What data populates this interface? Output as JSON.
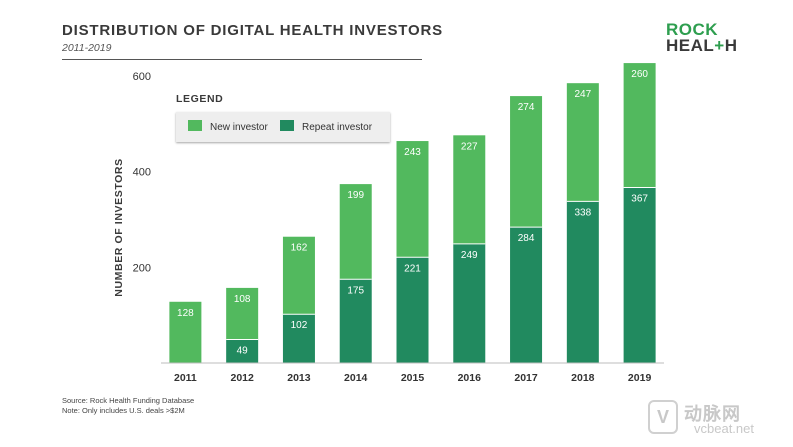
{
  "header": {
    "title": "DISTRIBUTION OF DIGITAL HEALTH INVESTORS",
    "subtitle": "2011-2019"
  },
  "logo": {
    "line1": "ROCK",
    "line2a": "HEAL",
    "line2plus": "+",
    "line2b": "H"
  },
  "legend": {
    "title": "LEGEND",
    "items": [
      {
        "label": "New investor",
        "color": "#52b95e"
      },
      {
        "label": "Repeat investor",
        "color": "#218a5f"
      }
    ]
  },
  "footnote": {
    "source": "Source: Rock Health Funding Database",
    "note": "Note: Only includes U.S. deals >$2M"
  },
  "watermark": {
    "icon": "V",
    "text": "动脉网",
    "url": "vcbeat.net"
  },
  "chart_data": {
    "type": "bar",
    "stacked": true,
    "title": "DISTRIBUTION OF DIGITAL HEALTH INVESTORS",
    "subtitle": "2011-2019",
    "xlabel": "",
    "ylabel": "NUMBER OF INVESTORS",
    "ylim": [
      0,
      600
    ],
    "yticks": [
      200,
      400,
      600
    ],
    "categories": [
      "2011",
      "2012",
      "2013",
      "2014",
      "2015",
      "2016",
      "2017",
      "2018",
      "2019"
    ],
    "series": [
      {
        "name": "Repeat investor",
        "color": "#218a5f",
        "values": [
          0,
          49,
          102,
          175,
          221,
          249,
          284,
          338,
          367
        ]
      },
      {
        "name": "New investor",
        "color": "#52b95e",
        "values": [
          128,
          108,
          162,
          199,
          243,
          227,
          274,
          247,
          260
        ]
      }
    ],
    "labels": {
      "Repeat investor": [
        "",
        "49",
        "102",
        "175",
        "221",
        "249",
        "284",
        "338",
        "367"
      ],
      "New investor": [
        "128",
        "108",
        "162",
        "199",
        "243",
        "227",
        "274",
        "247",
        "260"
      ]
    }
  }
}
